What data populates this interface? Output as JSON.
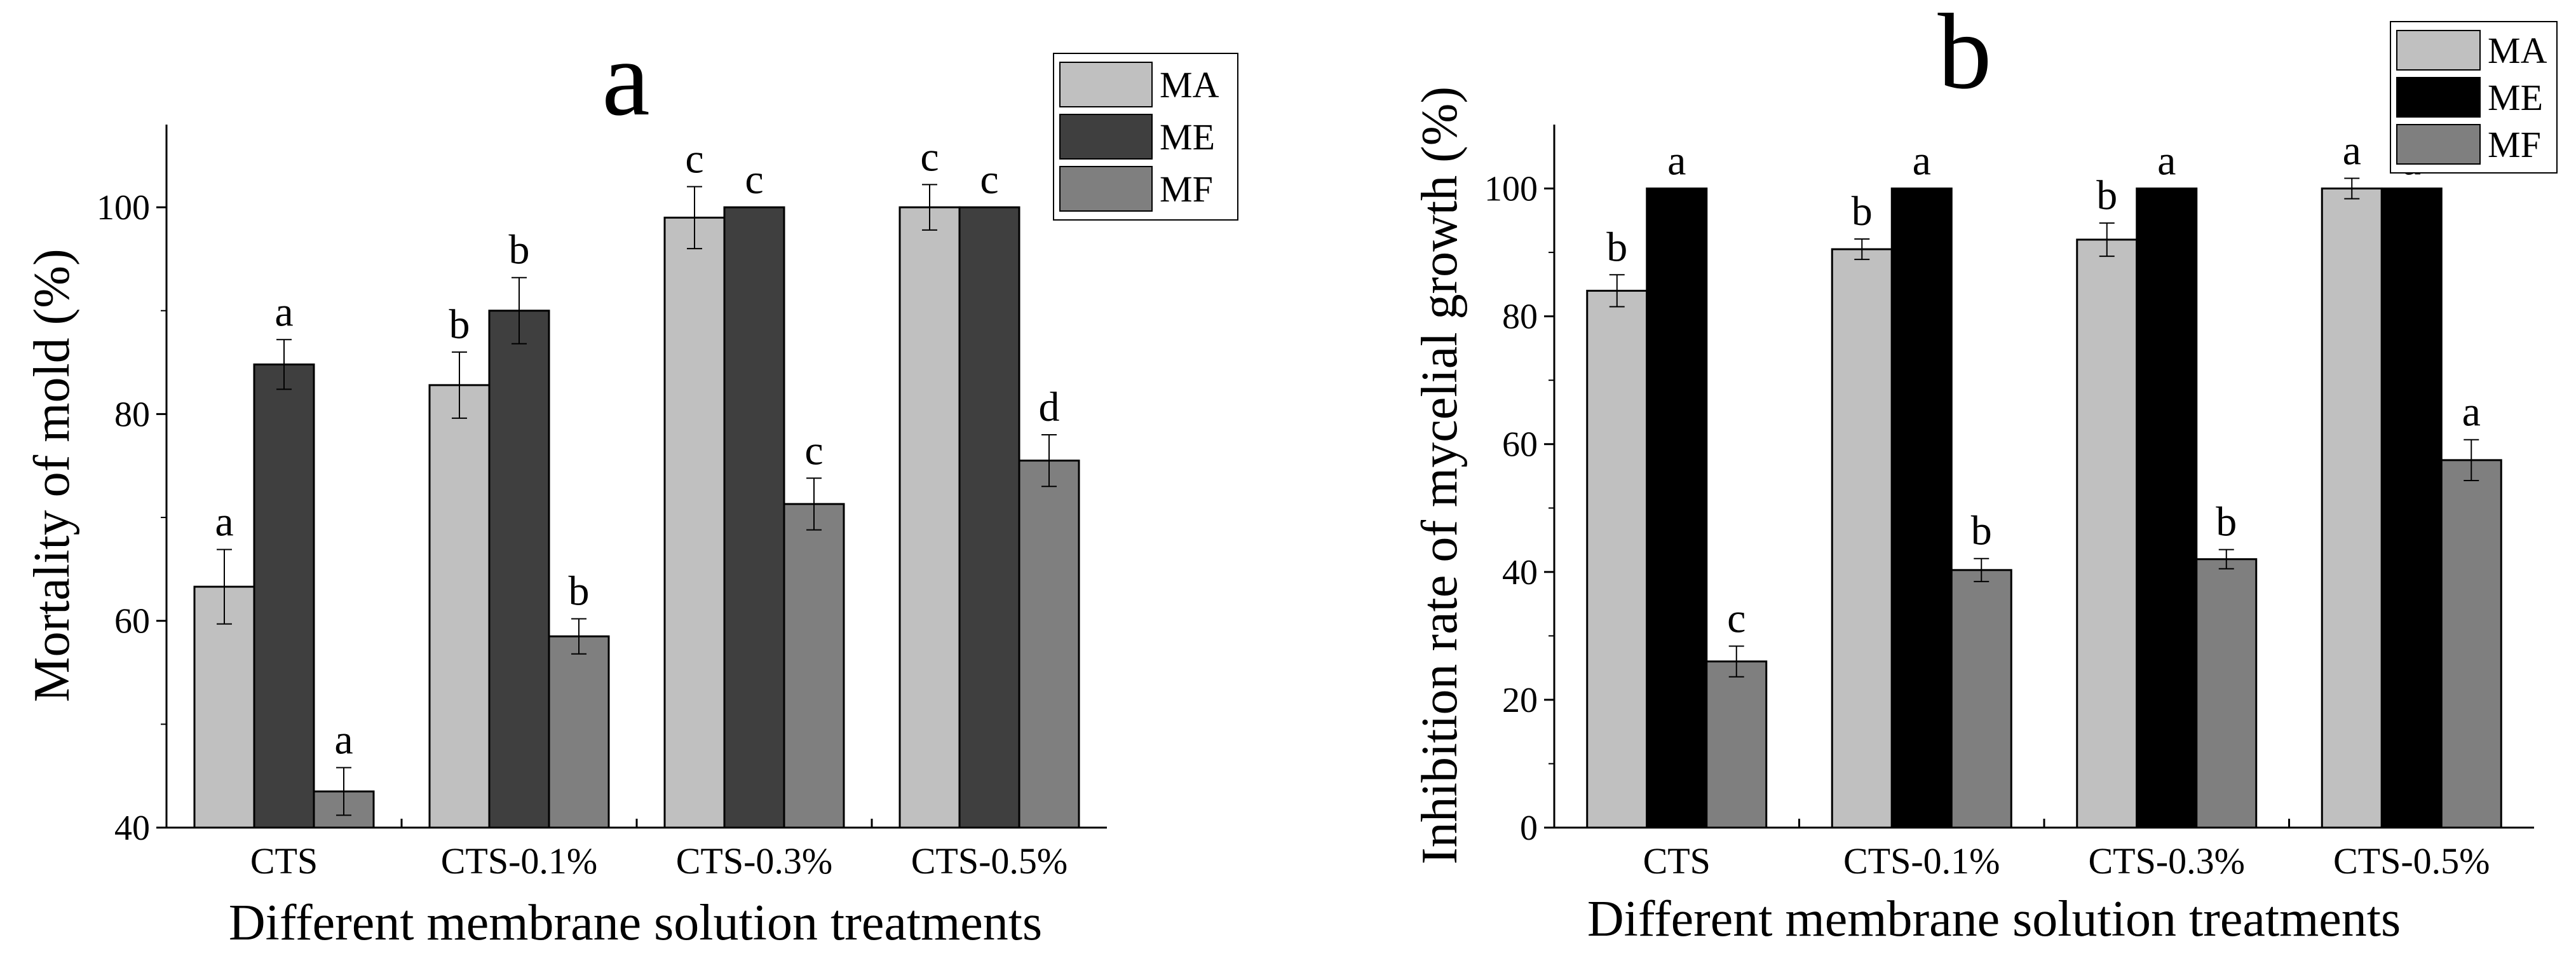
{
  "chart_data": [
    {
      "type": "bar",
      "panel_label": "a",
      "xlabel": "Different membrane solution treatments",
      "ylabel": "Mortality of mold (%)",
      "ylim": [
        40,
        108
      ],
      "yticks": [
        40,
        60,
        80,
        100
      ],
      "categories": [
        "CTS",
        "CTS-0.1%",
        "CTS-0.3%",
        "CTS-0.5%"
      ],
      "series": [
        {
          "name": "MA",
          "color": "#c0c0c0",
          "values": [
            63.3,
            82.8,
            99.0,
            100.0
          ],
          "errors": [
            3.6,
            3.2,
            3.0,
            2.2
          ],
          "letters": [
            "a",
            "b",
            "c",
            "c"
          ]
        },
        {
          "name": "ME",
          "color": "#3f3f3f",
          "values": [
            84.8,
            90.0,
            100.0,
            100.0
          ],
          "errors": [
            2.4,
            3.2,
            0,
            0
          ],
          "letters": [
            "a",
            "b",
            "c",
            "c"
          ]
        },
        {
          "name": "MF",
          "color": "#7f7f7f",
          "values": [
            43.5,
            58.5,
            71.3,
            75.5
          ],
          "errors": [
            2.3,
            1.7,
            2.5,
            2.5
          ],
          "letters": [
            "a",
            "b",
            "c",
            "d"
          ]
        }
      ],
      "legend": "top-right"
    },
    {
      "type": "bar",
      "panel_label": "b",
      "xlabel": "Different membrane solution treatments",
      "ylabel": "Inhibition rate of mycelial growth (%)",
      "ylim": [
        0,
        110
      ],
      "yticks": [
        0,
        20,
        40,
        60,
        80,
        100
      ],
      "categories": [
        "CTS",
        "CTS-0.1%",
        "CTS-0.3%",
        "CTS-0.5%"
      ],
      "series": [
        {
          "name": "MA",
          "color": "#c0c0c0",
          "values": [
            84.0,
            90.5,
            92.0,
            100.0
          ],
          "errors": [
            2.5,
            1.6,
            2.6,
            1.6
          ],
          "letters": [
            "b",
            "b",
            "b",
            "a"
          ]
        },
        {
          "name": "ME",
          "color": "#000000",
          "values": [
            100.0,
            100.0,
            100.0,
            100.0
          ],
          "errors": [
            0,
            0,
            0,
            0
          ],
          "letters": [
            "a",
            "a",
            "a",
            "a"
          ]
        },
        {
          "name": "MF",
          "color": "#7f7f7f",
          "values": [
            26.0,
            40.3,
            42.0,
            57.5
          ],
          "errors": [
            2.4,
            1.8,
            1.5,
            3.2
          ],
          "letters": [
            "c",
            "b",
            "b",
            "a"
          ]
        }
      ],
      "legend": "top-right"
    }
  ]
}
